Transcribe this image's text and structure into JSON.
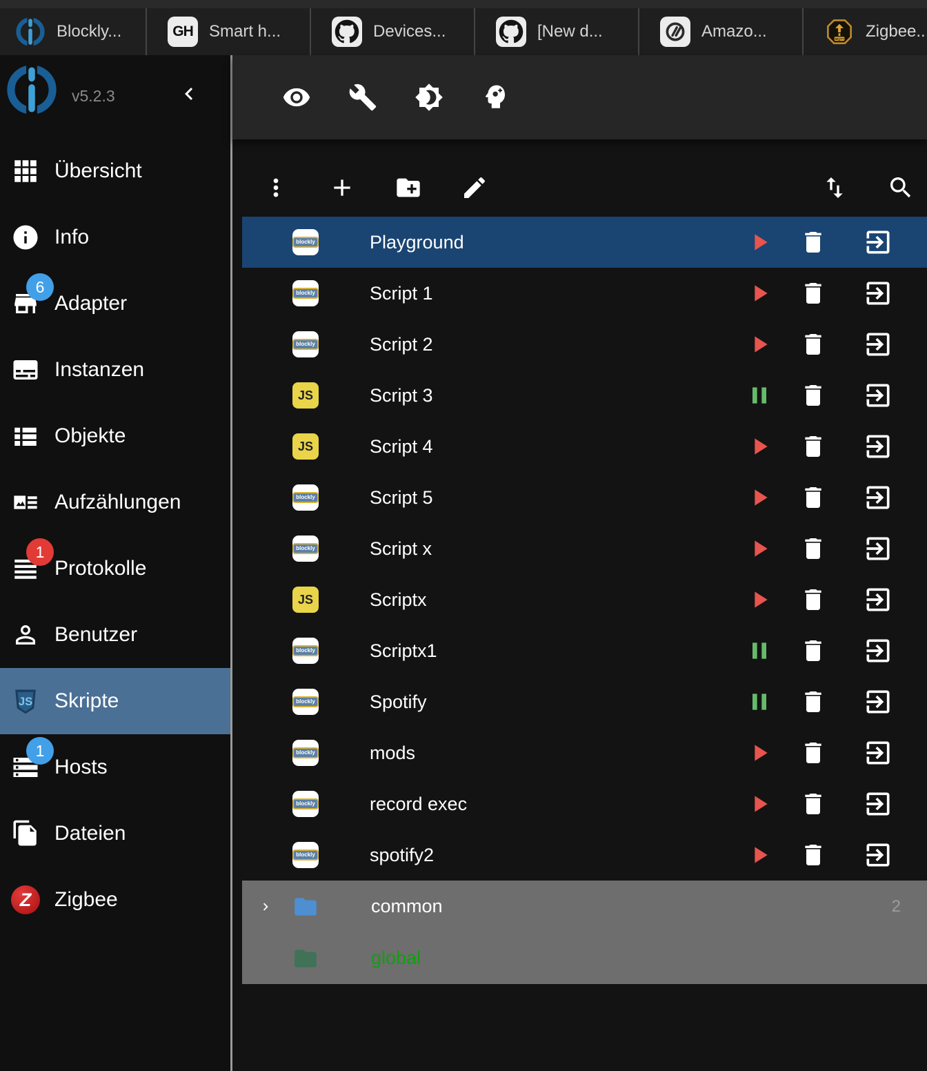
{
  "browser_tabs": [
    {
      "label": "Blockly...",
      "icon": "iobroker-icon"
    },
    {
      "label": "Smart h...",
      "icon": "gh-icon"
    },
    {
      "label": "Devices...",
      "icon": "github-icon"
    },
    {
      "label": "[New d...",
      "icon": "github-icon"
    },
    {
      "label": "Amazo...",
      "icon": "alexa-icon"
    },
    {
      "label": "Zigbee...",
      "icon": "mqtt-icon"
    }
  ],
  "sidebar": {
    "version": "v5.2.3",
    "items": [
      {
        "label": "Übersicht",
        "icon": "apps-grid-icon"
      },
      {
        "label": "Info",
        "icon": "info-icon"
      },
      {
        "label": "Adapter",
        "icon": "store-icon",
        "badge": "6",
        "badge_color": "#42a0e8"
      },
      {
        "label": "Instanzen",
        "icon": "instances-icon"
      },
      {
        "label": "Objekte",
        "icon": "objects-icon"
      },
      {
        "label": "Aufzählungen",
        "icon": "enums-icon"
      },
      {
        "label": "Protokolle",
        "icon": "logs-icon",
        "badge": "1",
        "badge_color": "#e23b35"
      },
      {
        "label": "Benutzer",
        "icon": "person-icon"
      },
      {
        "label": "Skripte",
        "icon": "js-shield-icon",
        "selected": true
      },
      {
        "label": "Hosts",
        "icon": "hosts-icon",
        "badge": "1",
        "badge_color": "#42a0e8"
      },
      {
        "label": "Dateien",
        "icon": "files-icon"
      },
      {
        "label": "Zigbee",
        "icon": "zigbee-icon"
      }
    ]
  },
  "appbar": {
    "icons": [
      {
        "icon": "visibility-icon"
      },
      {
        "icon": "build-icon"
      },
      {
        "icon": "brightness-icon"
      },
      {
        "icon": "expert-mode-icon"
      }
    ]
  },
  "list_toolbar": {
    "left_icons": [
      {
        "icon": "more-vert-icon"
      },
      {
        "icon": "add-script-icon"
      },
      {
        "icon": "new-folder-icon"
      },
      {
        "icon": "edit-icon"
      }
    ],
    "right_icons": [
      {
        "icon": "sort-icon"
      },
      {
        "icon": "search-icon"
      }
    ]
  },
  "scripts": [
    {
      "name": "Playground",
      "type_icon": "blockly-icon",
      "state_icon": "play-icon",
      "state": "state-play",
      "selected": true
    },
    {
      "name": "Script 1",
      "type_icon": "blockly-icon",
      "state_icon": "play-icon",
      "state": "state-play"
    },
    {
      "name": "Script 2",
      "type_icon": "blockly-icon",
      "state_icon": "play-icon",
      "state": "state-play"
    },
    {
      "name": "Script 3",
      "type_icon": "js-icon",
      "state_icon": "pause-icon",
      "state": "state-pause"
    },
    {
      "name": "Script 4",
      "type_icon": "js-icon",
      "state_icon": "play-icon",
      "state": "state-play"
    },
    {
      "name": "Script 5",
      "type_icon": "blockly-icon",
      "state_icon": "play-icon",
      "state": "state-play"
    },
    {
      "name": "Script x",
      "type_icon": "blockly-icon",
      "state_icon": "play-icon",
      "state": "state-play"
    },
    {
      "name": "Scriptx",
      "type_icon": "js-icon",
      "state_icon": "play-icon",
      "state": "state-play"
    },
    {
      "name": "Scriptx1",
      "type_icon": "blockly-icon",
      "state_icon": "pause-icon",
      "state": "state-pause"
    },
    {
      "name": "Spotify",
      "type_icon": "blockly-icon",
      "state_icon": "pause-icon",
      "state": "state-pause"
    },
    {
      "name": "mods",
      "type_icon": "blockly-icon",
      "state_icon": "play-icon",
      "state": "state-play"
    },
    {
      "name": "record exec",
      "type_icon": "blockly-icon",
      "state_icon": "play-icon",
      "state": "state-play"
    },
    {
      "name": "spotify2",
      "type_icon": "blockly-icon",
      "state_icon": "play-icon",
      "state": "state-play"
    }
  ],
  "folders": [
    {
      "name": "common",
      "icon": "folder-blue-icon",
      "chevron_icon": "chevron-right-icon",
      "count": "2",
      "name_class": "name-white"
    },
    {
      "name": "global",
      "icon": "folder-green-icon",
      "name_class": "name-green"
    }
  ],
  "colors": {
    "selected_row": "#1a4472",
    "sidebar_selected": "#4b7096",
    "play_red": "#e8544e",
    "pause_green": "#66bb6a",
    "badge_blue": "#42a0e8",
    "badge_red": "#e23b35",
    "folder_section_bg": "#6e6e6e",
    "global_green": "#0fa00f",
    "js_yellow": "#e9d44a",
    "folder_blue": "#4d8fd1",
    "folder_green": "#3f7257"
  }
}
